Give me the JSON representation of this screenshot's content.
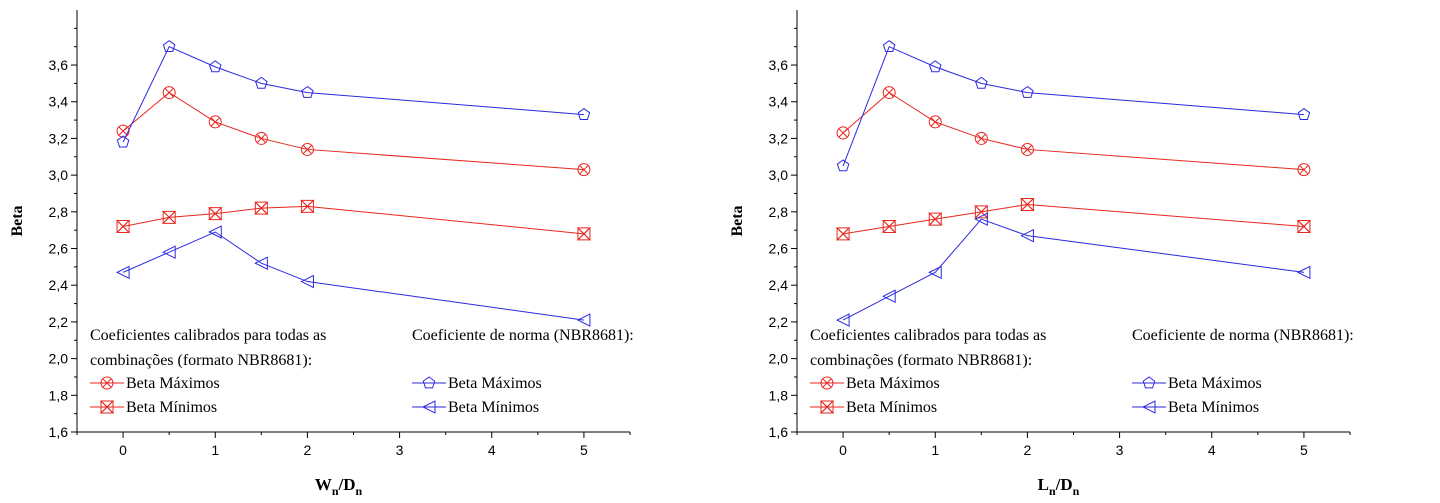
{
  "chart_data": [
    {
      "type": "line",
      "xlabel_main": "W",
      "xlabel_sub1": "n",
      "xlabel_sep": "/D",
      "xlabel_sub2": "n",
      "ylabel": "Beta",
      "xlim": [
        -0.5,
        5.5
      ],
      "ylim": [
        1.6,
        3.9
      ],
      "x_ticks": [
        0,
        1,
        2,
        3,
        4,
        5
      ],
      "y_ticks": [
        1.6,
        1.8,
        2.0,
        2.2,
        2.4,
        2.6,
        2.8,
        3.0,
        3.2,
        3.4,
        3.6
      ],
      "y_tick_labels": [
        "1,6",
        "1,8",
        "2,0",
        "2,2",
        "2,4",
        "2,6",
        "2,8",
        "3,0",
        "3,2",
        "3,4",
        "3,6"
      ],
      "legend": {
        "group1_title_line1": "Coeficientes calibrados para todas as",
        "group1_title_line2": "combinações (formato NBR8681):",
        "group2_title": "Coeficiente de norma (NBR8681):"
      },
      "series": [
        {
          "name": "Beta Máximos",
          "group": "calibrated",
          "marker": "x-circle",
          "color": "#e8271e",
          "x": [
            0,
            0.5,
            1,
            1.5,
            2,
            5
          ],
          "values": [
            3.24,
            3.45,
            3.29,
            3.2,
            3.14,
            3.03
          ]
        },
        {
          "name": "Beta Mínimos",
          "group": "calibrated",
          "marker": "x-bowtie",
          "color": "#e8271e",
          "x": [
            0,
            0.5,
            1,
            1.5,
            2,
            5
          ],
          "values": [
            2.72,
            2.77,
            2.79,
            2.82,
            2.83,
            2.68
          ]
        },
        {
          "name": "Beta Máximos",
          "group": "norm",
          "marker": "pentagon",
          "color": "#2a2ae0",
          "x": [
            0,
            0.5,
            1,
            1.5,
            2,
            5
          ],
          "values": [
            3.18,
            3.7,
            3.59,
            3.5,
            3.45,
            3.33
          ]
        },
        {
          "name": "Beta Mínimos",
          "group": "norm",
          "marker": "triangle-left",
          "color": "#2a2ae0",
          "x": [
            0,
            0.5,
            1,
            1.5,
            2,
            5
          ],
          "values": [
            2.47,
            2.58,
            2.69,
            2.52,
            2.42,
            2.21
          ]
        }
      ]
    },
    {
      "type": "line",
      "xlabel_main": "L",
      "xlabel_sub1": "n",
      "xlabel_sep": "/D",
      "xlabel_sub2": "n",
      "ylabel": "Beta",
      "xlim": [
        -0.5,
        5.5
      ],
      "ylim": [
        1.6,
        3.9
      ],
      "x_ticks": [
        0,
        1,
        2,
        3,
        4,
        5
      ],
      "y_ticks": [
        1.6,
        1.8,
        2.0,
        2.2,
        2.4,
        2.6,
        2.8,
        3.0,
        3.2,
        3.4,
        3.6
      ],
      "y_tick_labels": [
        "1,6",
        "1,8",
        "2,0",
        "2,2",
        "2,4",
        "2,6",
        "2,8",
        "3,0",
        "3,2",
        "3,4",
        "3,6"
      ],
      "legend": {
        "group1_title_line1": "Coeficientes calibrados para todas as",
        "group1_title_line2": "combinações (formato NBR8681):",
        "group2_title": "Coeficiente de norma (NBR8681):"
      },
      "series": [
        {
          "name": "Beta Máximos",
          "group": "calibrated",
          "marker": "x-circle",
          "color": "#e8271e",
          "x": [
            0,
            0.5,
            1,
            1.5,
            2,
            5
          ],
          "values": [
            3.23,
            3.45,
            3.29,
            3.2,
            3.14,
            3.03
          ]
        },
        {
          "name": "Beta Mínimos",
          "group": "calibrated",
          "marker": "x-bowtie",
          "color": "#e8271e",
          "x": [
            0,
            0.5,
            1,
            1.5,
            2,
            5
          ],
          "values": [
            2.68,
            2.72,
            2.76,
            2.8,
            2.84,
            2.72
          ]
        },
        {
          "name": "Beta Máximos",
          "group": "norm",
          "marker": "pentagon",
          "color": "#2a2ae0",
          "x": [
            0,
            0.5,
            1,
            1.5,
            2,
            5
          ],
          "values": [
            3.05,
            3.7,
            3.59,
            3.5,
            3.45,
            3.33
          ]
        },
        {
          "name": "Beta Mínimos",
          "group": "norm",
          "marker": "triangle-left",
          "color": "#2a2ae0",
          "x": [
            0,
            0.5,
            1,
            1.5,
            2,
            5
          ],
          "values": [
            2.21,
            2.34,
            2.47,
            2.76,
            2.67,
            2.47
          ]
        }
      ]
    }
  ]
}
